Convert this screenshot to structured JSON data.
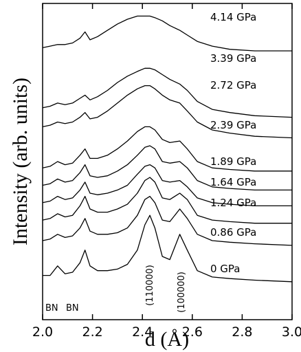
{
  "chart_data": {
    "type": "line",
    "xlabel": "d (Å)",
    "ylabel": "Intensity (arb. units)",
    "x": [
      2.0,
      2.03,
      2.06,
      2.09,
      2.12,
      2.15,
      2.17,
      2.19,
      2.22,
      2.26,
      2.3,
      2.34,
      2.38,
      2.41,
      2.43,
      2.45,
      2.48,
      2.51,
      2.55,
      2.58,
      2.62,
      2.68,
      2.75,
      2.85,
      3.0
    ],
    "xlim": [
      2.0,
      3.0
    ],
    "xticks": [
      {
        "value": 2.0,
        "label": "2.0"
      },
      2.2,
      2.4,
      2.6,
      2.8,
      {
        "value": 3.0,
        "label": "3.0"
      }
    ],
    "ylim": [
      0,
      100
    ],
    "series": [
      {
        "name": "0 GPa",
        "color": "#000000",
        "values": [
          14,
          14,
          17,
          14.5,
          15,
          18,
          22,
          17,
          15.5,
          15.5,
          16,
          17.5,
          22,
          30,
          33,
          29,
          20,
          19,
          27,
          22,
          15.5,
          13.5,
          13,
          12.5,
          12
        ]
      },
      {
        "name": "0.86 GPa",
        "color": "#000000",
        "values": [
          25,
          25.5,
          27,
          26,
          26.5,
          29,
          32,
          28,
          27,
          27,
          27.5,
          29,
          33,
          38,
          39,
          37,
          31.5,
          31,
          35,
          32,
          27,
          25,
          24.5,
          24,
          23.5
        ]
      },
      {
        "name": "1.24 GPa",
        "color": "#000000",
        "values": [
          31.5,
          32,
          33.5,
          32.5,
          33,
          36,
          39,
          35,
          34,
          34,
          35,
          36.5,
          40,
          44,
          45,
          43.5,
          38.5,
          38,
          40,
          38,
          33,
          31.5,
          31,
          30.5,
          30.5
        ]
      },
      {
        "name": "1.64 GPa",
        "color": "#000000",
        "values": [
          37,
          37.5,
          39,
          38,
          38.5,
          41,
          43.5,
          40,
          39.5,
          40,
          41,
          42.5,
          46,
          48.5,
          49,
          48,
          44,
          43.5,
          44,
          42,
          38.5,
          37,
          36.5,
          36,
          36
        ]
      },
      {
        "name": "1.89 GPa",
        "color": "#000000",
        "values": [
          42.5,
          43,
          44.5,
          43.5,
          44,
          46.5,
          49,
          45.5,
          45,
          45.5,
          47,
          49,
          52,
          54.5,
          55,
          54,
          50,
          49.5,
          50,
          48,
          44,
          42,
          41.5,
          41,
          41
        ]
      },
      {
        "name": "2.39 GPa",
        "color": "#000000",
        "values": [
          48,
          48.5,
          50,
          49,
          49.5,
          52,
          54,
          51,
          51,
          52,
          54,
          56.5,
          59.5,
          61,
          61,
          60,
          57,
          56,
          56.5,
          54,
          50,
          48,
          47.5,
          47,
          47
        ]
      },
      {
        "name": "2.72 GPa",
        "color": "#000000",
        "values": [
          61,
          61.5,
          62.5,
          62,
          62.5,
          64,
          65.5,
          63.5,
          64,
          66,
          68.5,
          71,
          73,
          74,
          74,
          73,
          71,
          69.5,
          68.5,
          66,
          62.5,
          60,
          59,
          58,
          57.5
        ]
      },
      {
        "name": "3.39 GPa",
        "color": "#000000",
        "values": [
          67,
          67.5,
          68.5,
          68,
          68.5,
          70,
          71,
          69.5,
          70.5,
          72.5,
          75,
          77,
          78.5,
          79.5,
          79.5,
          79,
          77.5,
          76,
          74.5,
          72.5,
          69,
          66.5,
          65.5,
          64.5,
          64
        ]
      },
      {
        "name": "4.14 GPa",
        "color": "#000000",
        "values": [
          86,
          86.5,
          87,
          87,
          87.5,
          89,
          91,
          88.5,
          89.5,
          91.5,
          93.5,
          95,
          96,
          96,
          96,
          95.5,
          94.5,
          93,
          91.5,
          90,
          88,
          86.5,
          85.5,
          85,
          85
        ]
      }
    ],
    "annotations": [
      "BN",
      "BN",
      "(110000)",
      "(100000)"
    ]
  }
}
